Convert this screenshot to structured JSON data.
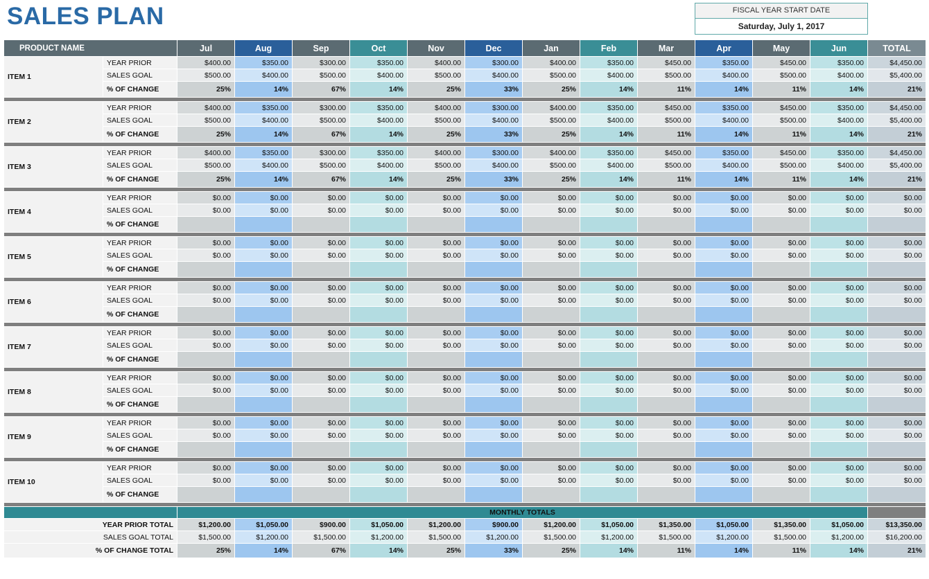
{
  "header": {
    "title": "SALES PLAN",
    "fiscal_label": "FISCAL YEAR START DATE",
    "fiscal_date": "Saturday, July 1, 2017"
  },
  "table": {
    "columns": [
      "PRODUCT NAME",
      "Jul",
      "Aug",
      "Sep",
      "Oct",
      "Nov",
      "Dec",
      "Jan",
      "Feb",
      "Mar",
      "Apr",
      "May",
      "Jun",
      "TOTAL"
    ],
    "row_labels": [
      "YEAR PRIOR",
      "SALES GOAL",
      "% OF CHANGE"
    ],
    "items": [
      {
        "name": "ITEM 1",
        "year_prior": [
          "$400.00",
          "$350.00",
          "$300.00",
          "$350.00",
          "$400.00",
          "$300.00",
          "$400.00",
          "$350.00",
          "$450.00",
          "$350.00",
          "$450.00",
          "$350.00",
          "$4,450.00"
        ],
        "sales_goal": [
          "$500.00",
          "$400.00",
          "$500.00",
          "$400.00",
          "$500.00",
          "$400.00",
          "$500.00",
          "$400.00",
          "$500.00",
          "$400.00",
          "$500.00",
          "$400.00",
          "$5,400.00"
        ],
        "change": [
          "25%",
          "14%",
          "67%",
          "14%",
          "25%",
          "33%",
          "25%",
          "14%",
          "11%",
          "14%",
          "11%",
          "14%",
          "21%"
        ]
      },
      {
        "name": "ITEM 2",
        "year_prior": [
          "$400.00",
          "$350.00",
          "$300.00",
          "$350.00",
          "$400.00",
          "$300.00",
          "$400.00",
          "$350.00",
          "$450.00",
          "$350.00",
          "$450.00",
          "$350.00",
          "$4,450.00"
        ],
        "sales_goal": [
          "$500.00",
          "$400.00",
          "$500.00",
          "$400.00",
          "$500.00",
          "$400.00",
          "$500.00",
          "$400.00",
          "$500.00",
          "$400.00",
          "$500.00",
          "$400.00",
          "$5,400.00"
        ],
        "change": [
          "25%",
          "14%",
          "67%",
          "14%",
          "25%",
          "33%",
          "25%",
          "14%",
          "11%",
          "14%",
          "11%",
          "14%",
          "21%"
        ]
      },
      {
        "name": "ITEM 3",
        "year_prior": [
          "$400.00",
          "$350.00",
          "$300.00",
          "$350.00",
          "$400.00",
          "$300.00",
          "$400.00",
          "$350.00",
          "$450.00",
          "$350.00",
          "$450.00",
          "$350.00",
          "$4,450.00"
        ],
        "sales_goal": [
          "$500.00",
          "$400.00",
          "$500.00",
          "$400.00",
          "$500.00",
          "$400.00",
          "$500.00",
          "$400.00",
          "$500.00",
          "$400.00",
          "$500.00",
          "$400.00",
          "$5,400.00"
        ],
        "change": [
          "25%",
          "14%",
          "67%",
          "14%",
          "25%",
          "33%",
          "25%",
          "14%",
          "11%",
          "14%",
          "11%",
          "14%",
          "21%"
        ]
      },
      {
        "name": "ITEM 4",
        "year_prior": [
          "$0.00",
          "$0.00",
          "$0.00",
          "$0.00",
          "$0.00",
          "$0.00",
          "$0.00",
          "$0.00",
          "$0.00",
          "$0.00",
          "$0.00",
          "$0.00",
          "$0.00"
        ],
        "sales_goal": [
          "$0.00",
          "$0.00",
          "$0.00",
          "$0.00",
          "$0.00",
          "$0.00",
          "$0.00",
          "$0.00",
          "$0.00",
          "$0.00",
          "$0.00",
          "$0.00",
          "$0.00"
        ],
        "change": []
      },
      {
        "name": "ITEM 5",
        "year_prior": [
          "$0.00",
          "$0.00",
          "$0.00",
          "$0.00",
          "$0.00",
          "$0.00",
          "$0.00",
          "$0.00",
          "$0.00",
          "$0.00",
          "$0.00",
          "$0.00",
          "$0.00"
        ],
        "sales_goal": [
          "$0.00",
          "$0.00",
          "$0.00",
          "$0.00",
          "$0.00",
          "$0.00",
          "$0.00",
          "$0.00",
          "$0.00",
          "$0.00",
          "$0.00",
          "$0.00",
          "$0.00"
        ],
        "change": []
      },
      {
        "name": "ITEM 6",
        "year_prior": [
          "$0.00",
          "$0.00",
          "$0.00",
          "$0.00",
          "$0.00",
          "$0.00",
          "$0.00",
          "$0.00",
          "$0.00",
          "$0.00",
          "$0.00",
          "$0.00",
          "$0.00"
        ],
        "sales_goal": [
          "$0.00",
          "$0.00",
          "$0.00",
          "$0.00",
          "$0.00",
          "$0.00",
          "$0.00",
          "$0.00",
          "$0.00",
          "$0.00",
          "$0.00",
          "$0.00",
          "$0.00"
        ],
        "change": []
      },
      {
        "name": "ITEM 7",
        "year_prior": [
          "$0.00",
          "$0.00",
          "$0.00",
          "$0.00",
          "$0.00",
          "$0.00",
          "$0.00",
          "$0.00",
          "$0.00",
          "$0.00",
          "$0.00",
          "$0.00",
          "$0.00"
        ],
        "sales_goal": [
          "$0.00",
          "$0.00",
          "$0.00",
          "$0.00",
          "$0.00",
          "$0.00",
          "$0.00",
          "$0.00",
          "$0.00",
          "$0.00",
          "$0.00",
          "$0.00",
          "$0.00"
        ],
        "change": []
      },
      {
        "name": "ITEM 8",
        "year_prior": [
          "$0.00",
          "$0.00",
          "$0.00",
          "$0.00",
          "$0.00",
          "$0.00",
          "$0.00",
          "$0.00",
          "$0.00",
          "$0.00",
          "$0.00",
          "$0.00",
          "$0.00"
        ],
        "sales_goal": [
          "$0.00",
          "$0.00",
          "$0.00",
          "$0.00",
          "$0.00",
          "$0.00",
          "$0.00",
          "$0.00",
          "$0.00",
          "$0.00",
          "$0.00",
          "$0.00",
          "$0.00"
        ],
        "change": []
      },
      {
        "name": "ITEM 9",
        "year_prior": [
          "$0.00",
          "$0.00",
          "$0.00",
          "$0.00",
          "$0.00",
          "$0.00",
          "$0.00",
          "$0.00",
          "$0.00",
          "$0.00",
          "$0.00",
          "$0.00",
          "$0.00"
        ],
        "sales_goal": [
          "$0.00",
          "$0.00",
          "$0.00",
          "$0.00",
          "$0.00",
          "$0.00",
          "$0.00",
          "$0.00",
          "$0.00",
          "$0.00",
          "$0.00",
          "$0.00",
          "$0.00"
        ],
        "change": []
      },
      {
        "name": "ITEM 10",
        "year_prior": [
          "$0.00",
          "$0.00",
          "$0.00",
          "$0.00",
          "$0.00",
          "$0.00",
          "$0.00",
          "$0.00",
          "$0.00",
          "$0.00",
          "$0.00",
          "$0.00",
          "$0.00"
        ],
        "sales_goal": [
          "$0.00",
          "$0.00",
          "$0.00",
          "$0.00",
          "$0.00",
          "$0.00",
          "$0.00",
          "$0.00",
          "$0.00",
          "$0.00",
          "$0.00",
          "$0.00",
          "$0.00"
        ],
        "change": []
      }
    ]
  },
  "totals": {
    "heading": "MONTHLY TOTALS",
    "labels": [
      "YEAR PRIOR TOTAL",
      "SALES GOAL TOTAL",
      "% OF CHANGE TOTAL"
    ],
    "year_prior": [
      "$1,200.00",
      "$1,050.00",
      "$900.00",
      "$1,050.00",
      "$1,200.00",
      "$900.00",
      "$1,200.00",
      "$1,050.00",
      "$1,350.00",
      "$1,050.00",
      "$1,350.00",
      "$1,050.00",
      "$13,350.00"
    ],
    "sales_goal": [
      "$1,500.00",
      "$1,200.00",
      "$1,500.00",
      "$1,200.00",
      "$1,500.00",
      "$1,200.00",
      "$1,500.00",
      "$1,200.00",
      "$1,500.00",
      "$1,200.00",
      "$1,500.00",
      "$1,200.00",
      "$16,200.00"
    ],
    "change": [
      "25%",
      "14%",
      "67%",
      "14%",
      "25%",
      "33%",
      "25%",
      "14%",
      "11%",
      "14%",
      "11%",
      "14%",
      "21%"
    ]
  }
}
